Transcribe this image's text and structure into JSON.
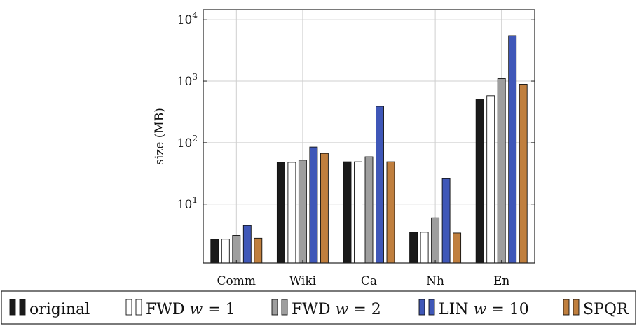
{
  "chart_data": {
    "type": "bar",
    "categories": [
      "Comm",
      "Wiki",
      "Ca",
      "Nh",
      "En"
    ],
    "ylabel": "size (MB)",
    "yscale": "log",
    "ylim": [
      1.1,
      14500
    ],
    "yticks": [
      {
        "value": 10,
        "base": "10",
        "exp": "1"
      },
      {
        "value": 100,
        "base": "10",
        "exp": "2"
      },
      {
        "value": 1000,
        "base": "10",
        "exp": "3"
      },
      {
        "value": 10000,
        "base": "10",
        "exp": "4"
      }
    ],
    "grid": true,
    "legend_position": "bottom",
    "series": [
      {
        "name": "original",
        "color": "#1a1a1a",
        "values": [
          2.7,
          48,
          49,
          3.5,
          500
        ]
      },
      {
        "name": "FWD w = 1",
        "color": "#ffffff",
        "values": [
          2.7,
          48,
          49,
          3.5,
          580
        ]
      },
      {
        "name": "FWD w = 2",
        "color": "#9e9e9e",
        "values": [
          3.1,
          52,
          59,
          6.0,
          1100
        ]
      },
      {
        "name": "LIN w = 10",
        "color": "#3f57b8",
        "values": [
          4.5,
          85,
          390,
          26,
          5500
        ]
      },
      {
        "name": "SPQR",
        "color": "#c07f3e",
        "values": [
          2.8,
          67,
          49,
          3.4,
          890
        ]
      }
    ]
  }
}
